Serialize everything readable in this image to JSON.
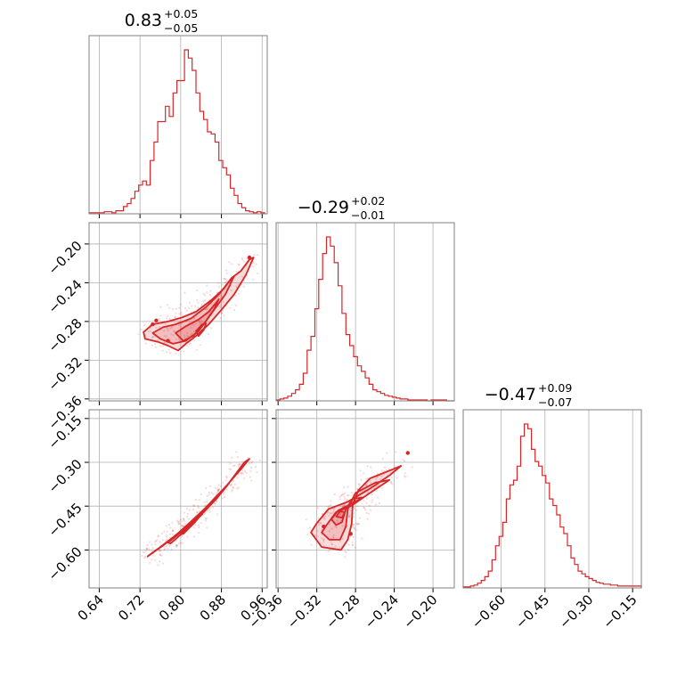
{
  "chart_data": {
    "type": "corner",
    "color": "#d62728",
    "grid": true,
    "parameters": [
      {
        "title": {
          "median": "0.83",
          "plus": "+0.05",
          "minus": "−0.05"
        },
        "range": [
          0.62,
          0.97
        ],
        "ticks": [
          0.64,
          0.72,
          0.8,
          0.88,
          0.96
        ],
        "tick_labels": [
          "0.64",
          "0.72",
          "0.80",
          "0.88",
          "0.96"
        ],
        "hist": {
          "bins": [
            0.62,
            0.6275,
            0.635,
            0.6425,
            0.65,
            0.6575,
            0.665,
            0.6725,
            0.68,
            0.6875,
            0.695,
            0.7025,
            0.71,
            0.7175,
            0.725,
            0.7325,
            0.74,
            0.7475,
            0.755,
            0.7625,
            0.77,
            0.7775,
            0.785,
            0.7925,
            0.8,
            0.8075,
            0.815,
            0.8225,
            0.83,
            0.8375,
            0.845,
            0.8525,
            0.86,
            0.8675,
            0.875,
            0.8825,
            0.89,
            0.8975,
            0.905,
            0.9125,
            0.92,
            0.9275,
            0.935,
            0.9425,
            0.95,
            0.9575,
            0.965
          ],
          "counts": [
            1,
            1,
            1,
            1,
            2,
            2,
            1,
            3,
            3,
            7,
            10,
            15,
            22,
            28,
            32,
            28,
            52,
            70,
            90,
            90,
            105,
            95,
            118,
            130,
            130,
            160,
            152,
            140,
            118,
            100,
            92,
            80,
            78,
            70,
            52,
            45,
            38,
            25,
            18,
            10,
            6,
            3,
            2,
            1,
            2,
            1
          ]
        }
      },
      {
        "title": {
          "median": "−0.29",
          "plus": "+0.02",
          "minus": "−0.01"
        },
        "range": [
          -0.362,
          -0.178
        ],
        "ticks": [
          -0.36,
          -0.32,
          -0.28,
          -0.24,
          -0.2
        ],
        "tick_labels": [
          "−0.36",
          "−0.32",
          "−0.28",
          "−0.24",
          "−0.20"
        ],
        "hist": {
          "bins": [
            -0.362,
            -0.358,
            -0.354,
            -0.35,
            -0.346,
            -0.342,
            -0.338,
            -0.334,
            -0.33,
            -0.326,
            -0.322,
            -0.318,
            -0.314,
            -0.31,
            -0.306,
            -0.302,
            -0.298,
            -0.294,
            -0.29,
            -0.286,
            -0.282,
            -0.278,
            -0.274,
            -0.27,
            -0.266,
            -0.262,
            -0.258,
            -0.254,
            -0.25,
            -0.246,
            -0.242,
            -0.238,
            -0.234,
            -0.23,
            -0.226,
            -0.222,
            -0.218,
            -0.214,
            -0.21,
            -0.206,
            -0.202,
            -0.198,
            -0.194,
            -0.19,
            -0.186,
            -0.182,
            -0.178
          ],
          "counts": [
            1,
            2,
            3,
            5,
            8,
            12,
            18,
            30,
            55,
            70,
            100,
            132,
            160,
            178,
            168,
            150,
            125,
            95,
            72,
            60,
            48,
            38,
            32,
            25,
            18,
            12,
            10,
            8,
            6,
            5,
            4,
            3,
            2,
            2,
            1,
            1,
            1,
            1,
            1,
            0,
            1,
            1,
            1,
            1,
            0,
            0
          ]
        }
      },
      {
        "title": {
          "median": "−0.47",
          "plus": "+0.09",
          "minus": "−0.07"
        },
        "range": [
          -0.73,
          -0.12
        ],
        "ticks": [
          -0.6,
          -0.45,
          -0.3,
          -0.15
        ],
        "tick_labels": [
          "−0.60",
          "−0.45",
          "−0.30",
          "−0.15"
        ],
        "hist": {
          "bins": [
            -0.73,
            -0.7177,
            -0.7054,
            -0.6931,
            -0.6808,
            -0.6685,
            -0.6562,
            -0.6439,
            -0.6316,
            -0.6193,
            -0.607,
            -0.5947,
            -0.5824,
            -0.5701,
            -0.5578,
            -0.5455,
            -0.5332,
            -0.5209,
            -0.5086,
            -0.4963,
            -0.484,
            -0.4717,
            -0.4594,
            -0.4471,
            -0.4348,
            -0.4225,
            -0.4102,
            -0.3979,
            -0.3856,
            -0.3733,
            -0.361,
            -0.3487,
            -0.3364,
            -0.3241,
            -0.3118,
            -0.2995,
            -0.2872,
            -0.2749,
            -0.2626,
            -0.2503,
            -0.238,
            -0.2257,
            -0.2134,
            -0.2011,
            -0.1888,
            -0.1765,
            -0.12
          ],
          "counts": [
            1,
            1,
            2,
            3,
            5,
            8,
            12,
            18,
            30,
            45,
            55,
            70,
            95,
            110,
            115,
            130,
            162,
            175,
            170,
            148,
            135,
            130,
            120,
            112,
            95,
            88,
            78,
            65,
            58,
            45,
            32,
            25,
            18,
            15,
            12,
            10,
            8,
            6,
            5,
            4,
            4,
            3,
            3,
            2,
            2,
            2
          ]
        }
      }
    ],
    "pairs": [
      {
        "x_param": 0,
        "y_param": 1,
        "contours": [
          [
            [
              0.727,
              -0.291
            ],
            [
              0.745,
              -0.283
            ],
            [
              0.775,
              -0.28
            ],
            [
              0.802,
              -0.276
            ],
            [
              0.83,
              -0.27
            ],
            [
              0.86,
              -0.258
            ],
            [
              0.885,
              -0.246
            ],
            [
              0.9,
              -0.235
            ],
            [
              0.918,
              -0.228
            ],
            [
              0.935,
              -0.216
            ],
            [
              0.943,
              -0.214
            ],
            [
              0.928,
              -0.232
            ],
            [
              0.905,
              -0.252
            ],
            [
              0.88,
              -0.268
            ],
            [
              0.855,
              -0.283
            ],
            [
              0.83,
              -0.295
            ],
            [
              0.81,
              -0.303
            ],
            [
              0.795,
              -0.31
            ],
            [
              0.775,
              -0.305
            ],
            [
              0.755,
              -0.301
            ],
            [
              0.73,
              -0.298
            ]
          ],
          [
            [
              0.745,
              -0.292
            ],
            [
              0.765,
              -0.286
            ],
            [
              0.79,
              -0.283
            ],
            [
              0.82,
              -0.277
            ],
            [
              0.85,
              -0.265
            ],
            [
              0.875,
              -0.252
            ],
            [
              0.893,
              -0.24
            ],
            [
              0.905,
              -0.233
            ],
            [
              0.888,
              -0.252
            ],
            [
              0.86,
              -0.272
            ],
            [
              0.835,
              -0.29
            ],
            [
              0.81,
              -0.3
            ],
            [
              0.785,
              -0.303
            ],
            [
              0.76,
              -0.298
            ]
          ],
          [
            [
              0.79,
              -0.292
            ],
            [
              0.81,
              -0.285
            ],
            [
              0.835,
              -0.278
            ],
            [
              0.855,
              -0.27
            ],
            [
              0.875,
              -0.257
            ],
            [
              0.865,
              -0.268
            ],
            [
              0.845,
              -0.283
            ],
            [
              0.825,
              -0.295
            ],
            [
              0.805,
              -0.3
            ]
          ],
          [
            [
              0.83,
              -0.29
            ],
            [
              0.842,
              -0.283
            ],
            [
              0.85,
              -0.282
            ],
            [
              0.845,
              -0.289
            ],
            [
              0.835,
              -0.295
            ]
          ]
        ],
        "dots": [
          [
            0.935,
            -0.214
          ],
          [
            0.752,
            -0.279
          ],
          [
            0.745,
            -0.283
          ],
          [
            0.775,
            -0.3
          ]
        ]
      },
      {
        "x_param": 0,
        "y_param": 2,
        "contours": [
          [
            [
              0.735,
              -0.622
            ],
            [
              0.765,
              -0.585
            ],
            [
              0.8,
              -0.535
            ],
            [
              0.835,
              -0.48
            ],
            [
              0.865,
              -0.428
            ],
            [
              0.895,
              -0.37
            ],
            [
              0.925,
              -0.3
            ],
            [
              0.935,
              -0.288
            ],
            [
              0.92,
              -0.32
            ],
            [
              0.885,
              -0.39
            ],
            [
              0.855,
              -0.445
            ],
            [
              0.822,
              -0.5
            ],
            [
              0.79,
              -0.55
            ],
            [
              0.76,
              -0.59
            ],
            [
              0.74,
              -0.615
            ]
          ],
          [
            [
              0.775,
              -0.575
            ],
            [
              0.805,
              -0.533
            ],
            [
              0.835,
              -0.483
            ],
            [
              0.868,
              -0.42
            ],
            [
              0.895,
              -0.372
            ],
            [
              0.87,
              -0.425
            ],
            [
              0.838,
              -0.484
            ],
            [
              0.805,
              -0.54
            ],
            [
              0.78,
              -0.578
            ]
          ],
          [
            [
              0.8,
              -0.547
            ],
            [
              0.82,
              -0.512
            ],
            [
              0.845,
              -0.468
            ],
            [
              0.828,
              -0.505
            ],
            [
              0.805,
              -0.545
            ]
          ],
          [
            [
              0.825,
              -0.5
            ],
            [
              0.835,
              -0.483
            ],
            [
              0.842,
              -0.478
            ],
            [
              0.832,
              -0.495
            ]
          ]
        ],
        "dots": []
      },
      {
        "x_param": 1,
        "y_param": 2,
        "contours": [
          [
            [
              -0.32,
              -0.508
            ],
            [
              -0.308,
              -0.46
            ],
            [
              -0.288,
              -0.435
            ],
            [
              -0.265,
              -0.39
            ],
            [
              -0.245,
              -0.345
            ],
            [
              -0.233,
              -0.312
            ],
            [
              -0.24,
              -0.322
            ],
            [
              -0.265,
              -0.355
            ],
            [
              -0.277,
              -0.395
            ],
            [
              -0.283,
              -0.445
            ],
            [
              -0.284,
              -0.51
            ],
            [
              -0.288,
              -0.565
            ],
            [
              -0.295,
              -0.6
            ],
            [
              -0.315,
              -0.59
            ],
            [
              -0.326,
              -0.54
            ]
          ],
          [
            [
              -0.31,
              -0.515
            ],
            [
              -0.3,
              -0.47
            ],
            [
              -0.285,
              -0.45
            ],
            [
              -0.265,
              -0.405
            ],
            [
              -0.245,
              -0.36
            ],
            [
              -0.26,
              -0.37
            ],
            [
              -0.28,
              -0.405
            ],
            [
              -0.288,
              -0.46
            ],
            [
              -0.29,
              -0.52
            ],
            [
              -0.296,
              -0.565
            ],
            [
              -0.307,
              -0.565
            ],
            [
              -0.315,
              -0.54
            ]
          ],
          [
            [
              -0.305,
              -0.495
            ],
            [
              -0.298,
              -0.465
            ],
            [
              -0.288,
              -0.448
            ],
            [
              -0.272,
              -0.42
            ],
            [
              -0.283,
              -0.425
            ],
            [
              -0.29,
              -0.46
            ],
            [
              -0.294,
              -0.505
            ],
            [
              -0.3,
              -0.515
            ]
          ],
          [
            [
              -0.3,
              -0.485
            ],
            [
              -0.296,
              -0.468
            ],
            [
              -0.291,
              -0.47
            ],
            [
              -0.294,
              -0.49
            ]
          ]
        ],
        "dots": [
          [
            -0.226,
            -0.268
          ],
          [
            -0.313,
            -0.52
          ],
          [
            -0.285,
            -0.545
          ]
        ]
      }
    ]
  }
}
